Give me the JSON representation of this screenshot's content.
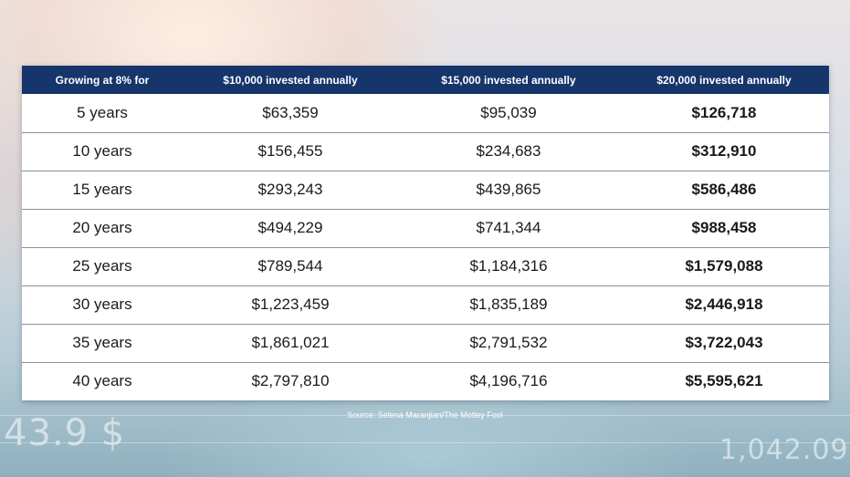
{
  "table": {
    "headers": [
      "Growing at 8% for",
      "$10,000 invested annually",
      "$15,000 invested annually",
      "$20,000 invested annually"
    ],
    "rows": [
      [
        "5 years",
        "$63,359",
        "$95,039",
        "$126,718"
      ],
      [
        "10 years",
        "$156,455",
        "$234,683",
        "$312,910"
      ],
      [
        "15 years",
        "$293,243",
        "$439,865",
        "$586,486"
      ],
      [
        "20 years",
        "$494,229",
        "$741,344",
        "$988,458"
      ],
      [
        "25 years",
        "$789,544",
        "$1,184,316",
        "$1,579,088"
      ],
      [
        "30 years",
        "$1,223,459",
        "$1,835,189",
        "$2,446,918"
      ],
      [
        "35 years",
        "$1,861,021",
        "$2,791,532",
        "$3,722,043"
      ],
      [
        "40 years",
        "$2,797,810",
        "$4,196,716",
        "$5,595,621"
      ]
    ]
  },
  "source": "Source:  Selena Maranjian/The Motley Fool",
  "background_numbers": [
    "43.9 $",
    "1,042.09"
  ],
  "colors": {
    "header_bg": "#15356b",
    "header_text": "#ffffff",
    "row_divider": "#8a8f99"
  }
}
